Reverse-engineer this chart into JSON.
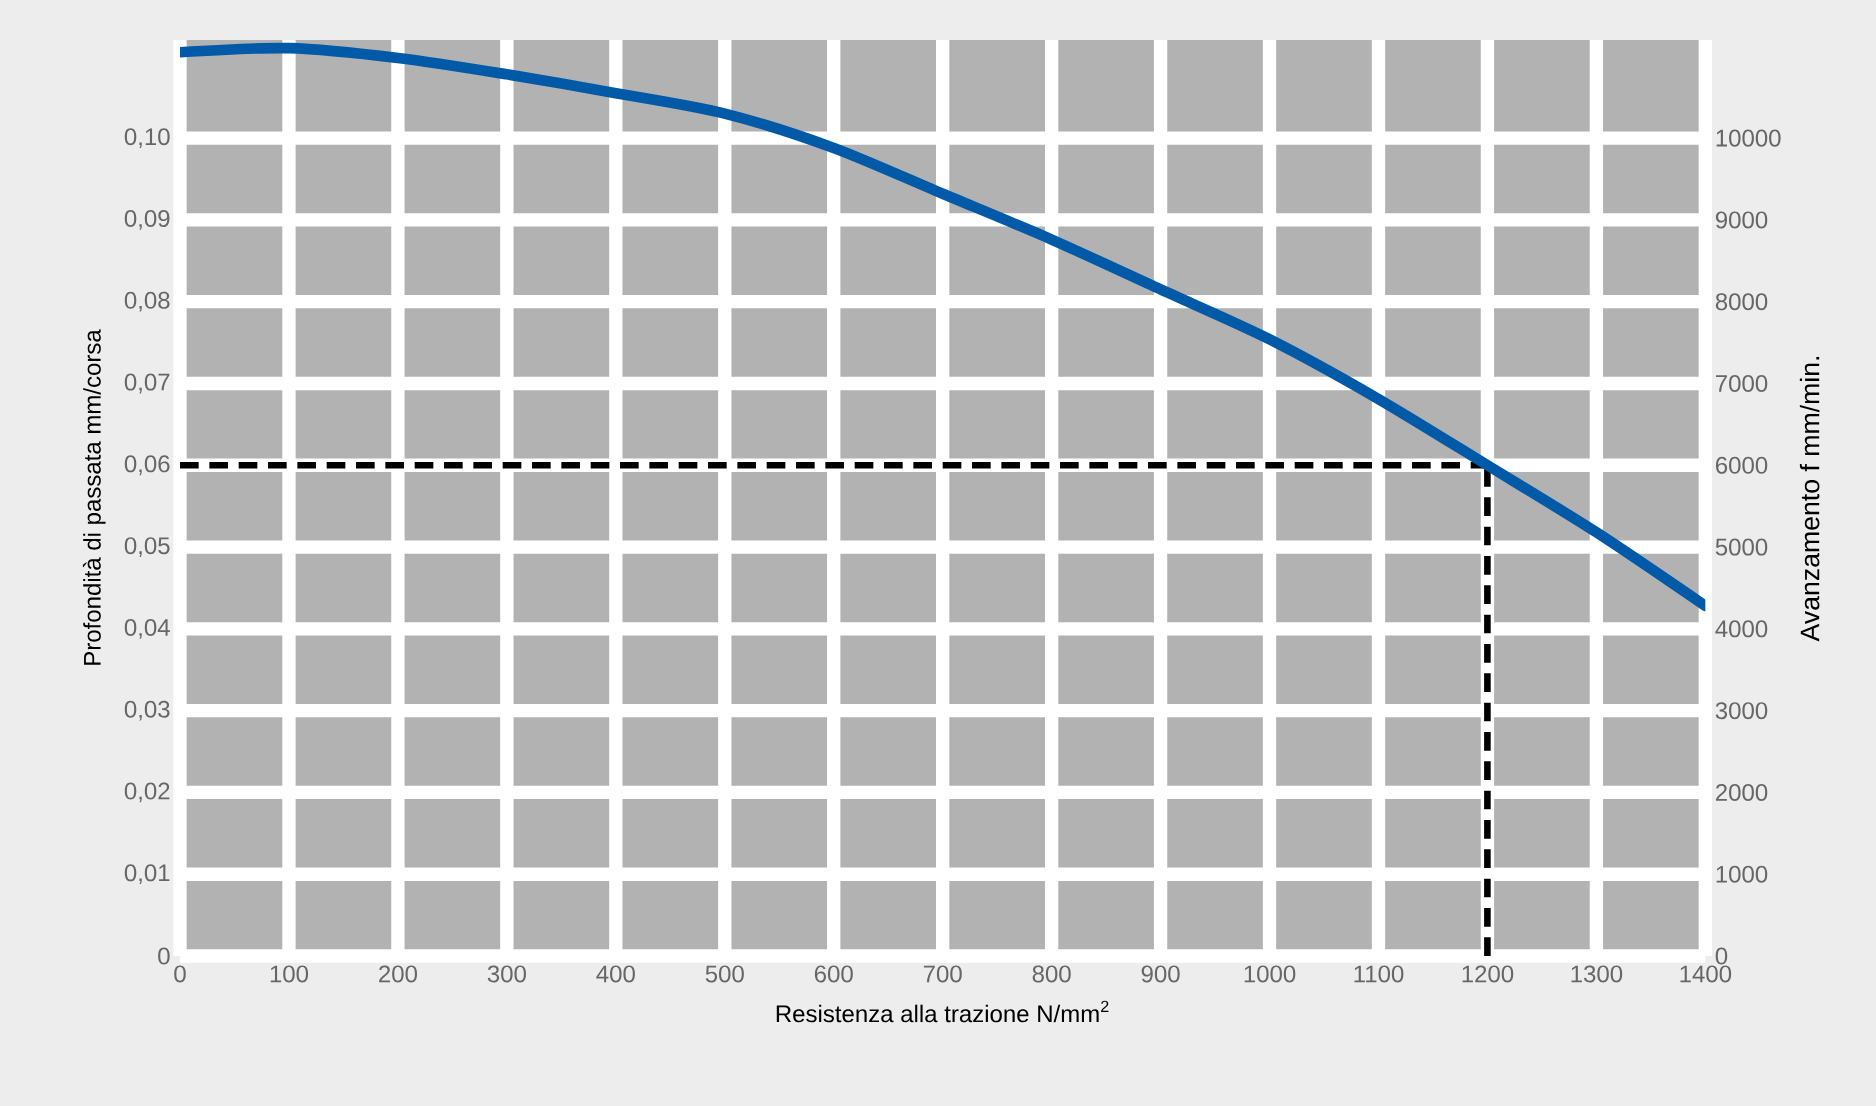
{
  "chart_data": {
    "type": "line",
    "xlabel": "Resistenza alla trazione N/mm$^{2}$",
    "ylabel": "Profondità di passata mm/corsa",
    "y2label": "Avanzamento f mm/min.",
    "x": [
      0,
      100,
      200,
      300,
      400,
      500,
      600,
      700,
      800,
      900,
      1000,
      1100,
      1200,
      1300,
      1400
    ],
    "series": [
      {
        "color": "#005aa8",
        "values": [
          0.1105,
          0.111,
          0.1098,
          0.1078,
          0.1055,
          0.103,
          0.0988,
          0.0932,
          0.0876,
          0.0815,
          0.0754,
          0.0681,
          0.06,
          0.0518,
          0.0428
        ]
      }
    ],
    "xlim": [
      0,
      1400
    ],
    "ylim": [
      0,
      0.112
    ],
    "y2lim": [
      0,
      11200
    ],
    "xticks": [
      0,
      100,
      200,
      300,
      400,
      500,
      600,
      700,
      800,
      900,
      1000,
      1100,
      1200,
      1300,
      1400
    ],
    "yticks": [
      0,
      {
        "value": 0.01,
        "label": "0,01"
      },
      {
        "value": 0.02,
        "label": "0,02"
      },
      {
        "value": 0.03,
        "label": "0,03"
      },
      {
        "value": 0.04,
        "label": "0,04"
      },
      {
        "value": 0.05,
        "label": "0,05"
      },
      {
        "value": 0.06,
        "label": "0,06"
      },
      {
        "value": 0.07,
        "label": "0,07"
      },
      {
        "value": 0.08,
        "label": "0,08"
      },
      {
        "value": 0.09,
        "label": "0,09"
      },
      {
        "value": 0.1,
        "label": "0,10"
      }
    ],
    "y2ticks": [
      0,
      1000,
      2000,
      3000,
      4000,
      5000,
      6000,
      7000,
      8000,
      9000,
      10000
    ],
    "ref_lines": [
      {
        "axis": "x",
        "value": 1200,
        "color": "#000000",
        "line_style": "dashed"
      },
      {
        "axis": "y",
        "value": 0.06,
        "color": "#000000",
        "line_style": "dashed"
      }
    ],
    "grid": true
  }
}
